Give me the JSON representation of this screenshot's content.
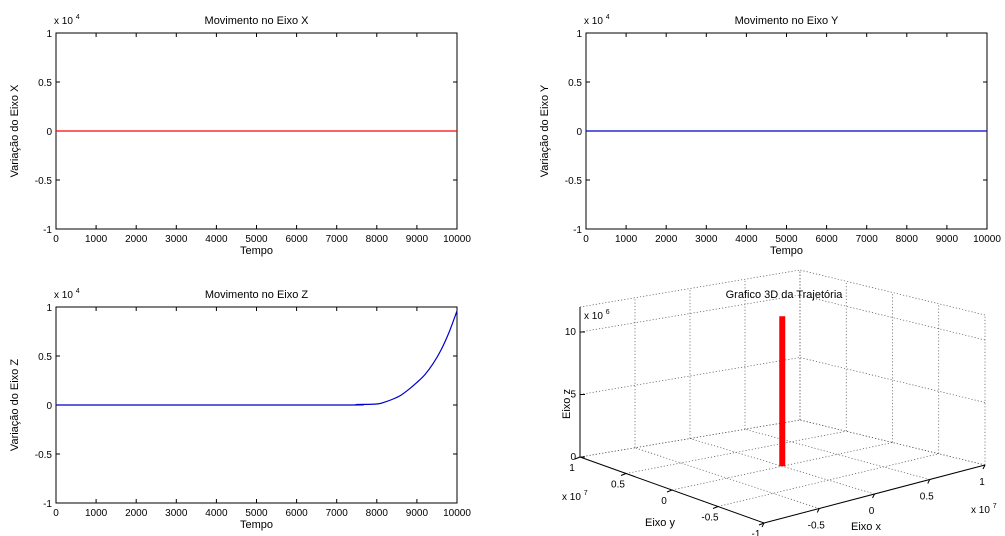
{
  "chart_data": [
    {
      "type": "line",
      "title": "Movimento no Eixo X",
      "xlabel": "Tempo",
      "ylabel": "Variação do Eixo X",
      "exponent_base": "x 10",
      "exponent_power": "4",
      "xlim": [
        0,
        10000
      ],
      "ylim": [
        -1,
        1
      ],
      "x_ticks": [
        0,
        1000,
        2000,
        3000,
        4000,
        5000,
        6000,
        7000,
        8000,
        9000,
        10000
      ],
      "y_ticks": [
        -1,
        -0.5,
        0,
        0.5,
        1
      ],
      "y_tick_labels": [
        "-1",
        "-0.5",
        "0",
        "0.5",
        "1"
      ],
      "grid": false,
      "series": [
        {
          "color": "#ff0000",
          "x": [
            0,
            10000
          ],
          "y": [
            0,
            0
          ]
        }
      ]
    },
    {
      "type": "line",
      "title": "Movimento no Eixo Y",
      "xlabel": "Tempo",
      "ylabel": "Variação do Eixo Y",
      "exponent_base": "x 10",
      "exponent_power": "4",
      "xlim": [
        0,
        10000
      ],
      "ylim": [
        -1,
        1
      ],
      "x_ticks": [
        0,
        1000,
        2000,
        3000,
        4000,
        5000,
        6000,
        7000,
        8000,
        9000,
        10000
      ],
      "y_ticks": [
        -1,
        -0.5,
        0,
        0.5,
        1
      ],
      "y_tick_labels": [
        "-1",
        "-0.5",
        "0",
        "0.5",
        "1"
      ],
      "grid": false,
      "series": [
        {
          "color": "#0000cc",
          "x": [
            0,
            10000
          ],
          "y": [
            0,
            0
          ]
        }
      ]
    },
    {
      "type": "line",
      "title": "Movimento no Eixo Z",
      "xlabel": "Tempo",
      "ylabel": "Variação do Eixo Z",
      "exponent_base": "x 10",
      "exponent_power": "4",
      "xlim": [
        0,
        10000
      ],
      "ylim": [
        -1,
        1
      ],
      "x_ticks": [
        0,
        1000,
        2000,
        3000,
        4000,
        5000,
        6000,
        7000,
        8000,
        9000,
        10000
      ],
      "y_ticks": [
        -1,
        -0.5,
        0,
        0.5,
        1
      ],
      "y_tick_labels": [
        "-1",
        "-0.5",
        "0",
        "0.5",
        "1"
      ],
      "grid": false,
      "series": [
        {
          "color": "#0000cc",
          "x": [
            0,
            7000,
            7500,
            8000,
            8200,
            8400,
            8600,
            8800,
            9000,
            9200,
            9400,
            9600,
            9800,
            10000
          ],
          "y": [
            0,
            0,
            0.005,
            0.01,
            0.03,
            0.06,
            0.1,
            0.16,
            0.23,
            0.31,
            0.42,
            0.56,
            0.74,
            0.96
          ]
        }
      ]
    },
    {
      "type": "line",
      "title": "Grafico 3D da Trajetória",
      "xlabel": "Eixo x",
      "ylabel": "Eixo y",
      "zlabel": "Eixo z",
      "xy_exponent_base": "x 10",
      "xy_exponent_power": "7",
      "z_exponent_base": "x 10",
      "z_exponent_power": "6",
      "xlim": [
        -1,
        1
      ],
      "ylim": [
        -1,
        1
      ],
      "zlim": [
        0,
        12
      ],
      "x_ticks": [
        -1,
        -0.5,
        0,
        0.5,
        1
      ],
      "x_tick_labels": [
        "-1",
        "-0.5",
        "0",
        "0.5",
        "1"
      ],
      "y_ticks": [
        -1,
        -0.5,
        0,
        0.5,
        1
      ],
      "y_tick_labels": [
        "-1",
        "-0.5",
        "0",
        "0.5",
        "1"
      ],
      "z_ticks": [
        0,
        5,
        10
      ],
      "z_tick_labels": [
        "0",
        "5",
        "10"
      ],
      "grid": true,
      "series": [
        {
          "color": "#ff0000",
          "x": [
            0,
            0
          ],
          "y": [
            0,
            0
          ],
          "z": [
            0,
            12
          ]
        }
      ]
    }
  ]
}
